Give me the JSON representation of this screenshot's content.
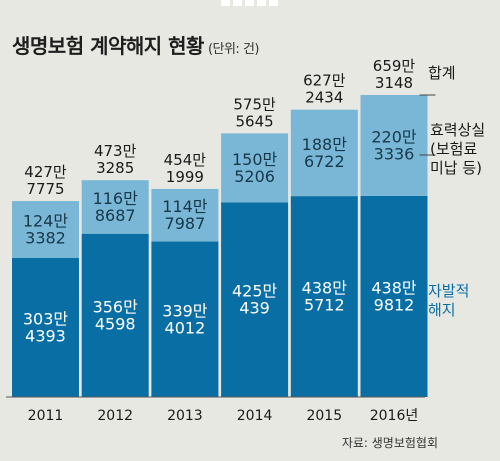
{
  "title": "생명보험 계약해지 현황",
  "unit": "(단위: 건)",
  "source": "자료: 생명보험협회",
  "colors": {
    "background": "#e8e8e3",
    "dark": "#086ea3",
    "light": "#7ab7d6",
    "accent": "#0a6ea5"
  },
  "legend": {
    "total": [
      "합계"
    ],
    "lapse": [
      "효력상실",
      "(보험료",
      "미납 등)"
    ],
    "surrender": [
      "자발적",
      "해지"
    ]
  },
  "chart_data": {
    "type": "bar",
    "stacked": true,
    "categories": [
      "2011",
      "2012",
      "2013",
      "2014",
      "2015",
      "2016년"
    ],
    "series": [
      {
        "key": "surrender",
        "values": [
          3034393,
          3564598,
          3394012,
          4250439,
          4385712,
          4389812
        ],
        "labels": [
          [
            "303만",
            "4393"
          ],
          [
            "356만",
            "4598"
          ],
          [
            "339만",
            "4012"
          ],
          [
            "425만",
            "439"
          ],
          [
            "438만",
            "5712"
          ],
          [
            "438만",
            "9812"
          ]
        ]
      },
      {
        "key": "lapse",
        "values": [
          1243382,
          1168687,
          1147987,
          1505206,
          1886722,
          2203336
        ],
        "labels": [
          [
            "124만",
            "3382"
          ],
          [
            "116만",
            "8687"
          ],
          [
            "114만",
            "7987"
          ],
          [
            "150만",
            "5206"
          ],
          [
            "188만",
            "6722"
          ],
          [
            "220만",
            "3336"
          ]
        ]
      }
    ],
    "totals": {
      "values": [
        4277775,
        4733285,
        4541999,
        5755645,
        6272434,
        6593148
      ],
      "labels": [
        [
          "427만",
          "7775"
        ],
        [
          "473만",
          "3285"
        ],
        [
          "454만",
          "1999"
        ],
        [
          "575만",
          "5645"
        ],
        [
          "627만",
          "2434"
        ],
        [
          "659만",
          "3148"
        ]
      ]
    }
  }
}
